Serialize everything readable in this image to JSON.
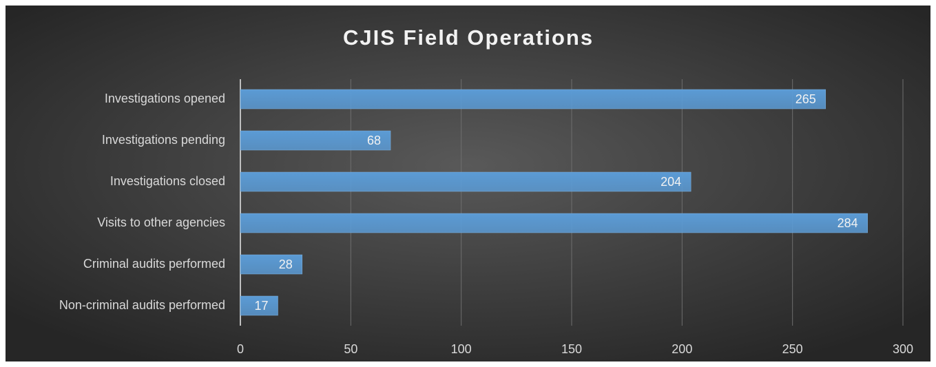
{
  "chart_data": {
    "type": "bar",
    "orientation": "horizontal",
    "title": "CJIS Field Operations",
    "categories": [
      "Investigations opened",
      "Investigations pending",
      "Investigations closed",
      "Visits to other agencies",
      "Criminal audits performed",
      "Non-criminal audits performed"
    ],
    "values": [
      265,
      68,
      204,
      284,
      28,
      17
    ],
    "color": "#5b9bd5",
    "xlim": [
      0,
      300
    ],
    "xticks": [
      0,
      50,
      100,
      150,
      200,
      250,
      300
    ],
    "grid": true
  }
}
